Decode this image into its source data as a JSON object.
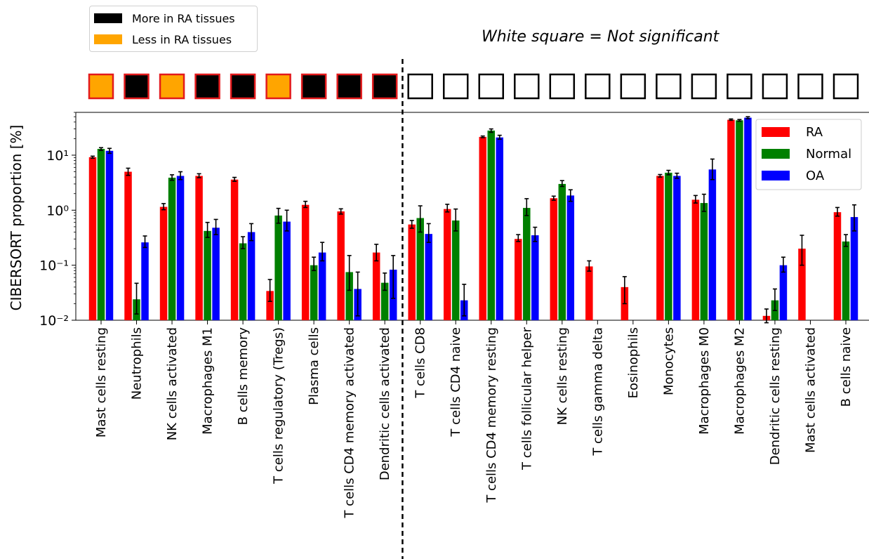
{
  "significance_legend": {
    "items": [
      {
        "label": "More in RA tissues",
        "color": "#000000"
      },
      {
        "label": "Less in RA tissues",
        "color": "#ffa500"
      }
    ]
  },
  "note": "White square = Not significant",
  "chart_data": {
    "type": "bar",
    "ylabel": "CIBERSORT proportion [%]",
    "yscale": "log",
    "ylim": [
      0.01,
      60
    ],
    "yticks": [
      0.01,
      0.1,
      1,
      10
    ],
    "ytick_labels": [
      "10⁻²",
      "10⁻¹",
      "10⁰",
      "10¹"
    ],
    "categories": [
      "Mast cells resting",
      "Neutrophils",
      "NK cells activated",
      "Macrophages M1",
      "B cells memory",
      "T cells regulatory (Tregs)",
      "Plasma cells",
      "T cells CD4 memory activated",
      "Dendritic cells activated",
      "T cells CD8",
      "T cells CD4 naive",
      "T cells CD4 memory resting",
      "T cells follicular helper",
      "NK cells resting",
      "T cells gamma delta",
      "Eosinophils",
      "Monocytes",
      "Macrophages M0",
      "Macrophages M2",
      "Dendritic cells resting",
      "Mast cells activated",
      "B cells naive"
    ],
    "significance": [
      "less",
      "more",
      "less",
      "more",
      "more",
      "less",
      "more",
      "more",
      "more",
      "ns",
      "ns",
      "ns",
      "ns",
      "ns",
      "ns",
      "ns",
      "ns",
      "ns",
      "ns",
      "ns",
      "ns",
      "ns"
    ],
    "significance_colors": {
      "more": "#000000",
      "less": "#ffa500",
      "ns": "#ffffff"
    },
    "series": [
      {
        "name": "RA",
        "color": "#ff0000",
        "values": [
          9.2,
          5.0,
          1.15,
          4.2,
          3.6,
          0.034,
          1.25,
          0.95,
          0.17,
          0.55,
          1.05,
          21.5,
          0.3,
          1.65,
          0.095,
          0.04,
          4.2,
          1.55,
          44,
          0.012,
          0.2,
          0.92
        ],
        "err_low": [
          8.8,
          4.3,
          1.02,
          3.9,
          3.35,
          0.022,
          1.12,
          0.85,
          0.12,
          0.47,
          0.93,
          20.8,
          0.27,
          1.52,
          0.078,
          0.02,
          4.0,
          1.35,
          43,
          0.009,
          0.1,
          0.78
        ],
        "err_high": [
          9.6,
          5.8,
          1.32,
          4.6,
          3.95,
          0.055,
          1.45,
          1.06,
          0.24,
          0.65,
          1.28,
          22.3,
          0.36,
          1.8,
          0.12,
          0.062,
          4.45,
          1.85,
          45.5,
          0.016,
          0.35,
          1.12
        ]
      },
      {
        "name": "Normal",
        "color": "#008000",
        "values": [
          13.0,
          0.024,
          3.9,
          0.42,
          0.25,
          0.8,
          0.1,
          0.075,
          0.048,
          0.72,
          0.65,
          28.0,
          1.1,
          3.0,
          null,
          null,
          4.8,
          1.35,
          43,
          0.023,
          null,
          0.27
        ],
        "err_low": [
          12.2,
          0.013,
          3.5,
          0.32,
          0.2,
          0.58,
          0.08,
          0.035,
          0.035,
          0.4,
          0.42,
          26.0,
          0.8,
          2.7,
          null,
          null,
          4.4,
          0.95,
          41.5,
          0.015,
          null,
          0.22
        ],
        "err_high": [
          13.7,
          0.047,
          4.4,
          0.6,
          0.33,
          1.08,
          0.14,
          0.15,
          0.072,
          1.2,
          1.05,
          30.0,
          1.62,
          3.45,
          null,
          null,
          5.3,
          1.95,
          44.5,
          0.037,
          null,
          0.36
        ]
      },
      {
        "name": "OA",
        "color": "#0000ff",
        "values": [
          12.0,
          0.26,
          4.2,
          0.48,
          0.4,
          0.62,
          0.17,
          0.037,
          0.083,
          0.37,
          0.023,
          21.0,
          0.35,
          1.85,
          null,
          null,
          4.2,
          5.5,
          48,
          0.1,
          null,
          0.75
        ],
        "err_low": [
          10.8,
          0.21,
          3.6,
          0.36,
          0.28,
          0.42,
          0.12,
          0.012,
          0.025,
          0.26,
          0.012,
          19.5,
          0.27,
          1.45,
          null,
          null,
          3.8,
          3.6,
          46,
          0.075,
          null,
          0.42
        ],
        "err_high": [
          13.3,
          0.34,
          5.0,
          0.68,
          0.57,
          1.0,
          0.26,
          0.075,
          0.15,
          0.57,
          0.045,
          23.0,
          0.49,
          2.35,
          null,
          null,
          4.7,
          8.5,
          50,
          0.14,
          null,
          1.25
        ]
      }
    ]
  }
}
